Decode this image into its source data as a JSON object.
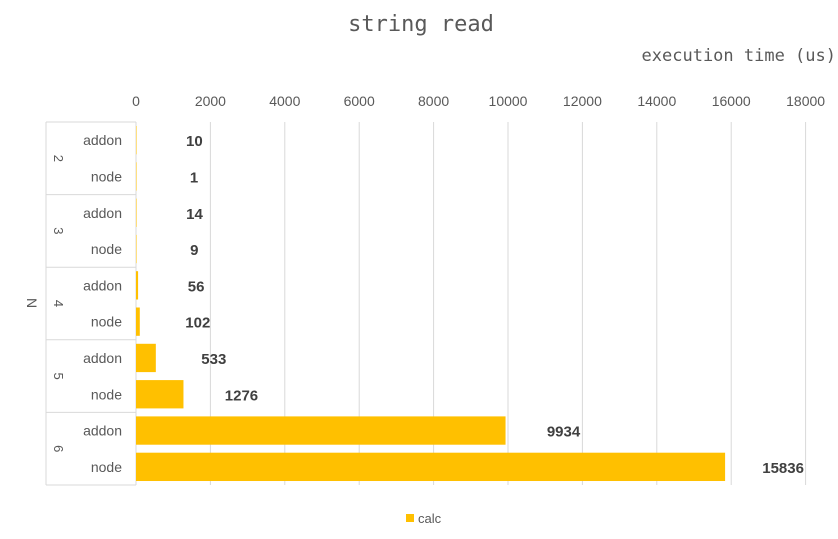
{
  "chart_data": {
    "type": "bar",
    "orientation": "horizontal",
    "title": "string read",
    "xlabel": "execution time (us)",
    "ylabel": "N",
    "xlim": [
      0,
      18000
    ],
    "xticks": [
      0,
      2000,
      4000,
      6000,
      8000,
      10000,
      12000,
      14000,
      16000,
      18000
    ],
    "x_axis_position": "top",
    "grid": true,
    "legend": "bottom",
    "groups": [
      {
        "name": "2",
        "categories": [
          "addon",
          "node"
        ],
        "values": [
          10,
          1
        ]
      },
      {
        "name": "3",
        "categories": [
          "addon",
          "node"
        ],
        "values": [
          14,
          9
        ]
      },
      {
        "name": "4",
        "categories": [
          "addon",
          "node"
        ],
        "values": [
          56,
          102
        ]
      },
      {
        "name": "5",
        "categories": [
          "addon",
          "node"
        ],
        "values": [
          533,
          1276
        ]
      },
      {
        "name": "6",
        "categories": [
          "addon",
          "node"
        ],
        "values": [
          9934,
          15836
        ]
      }
    ],
    "series": [
      {
        "name": "calc",
        "color": "#ffc000"
      }
    ]
  }
}
